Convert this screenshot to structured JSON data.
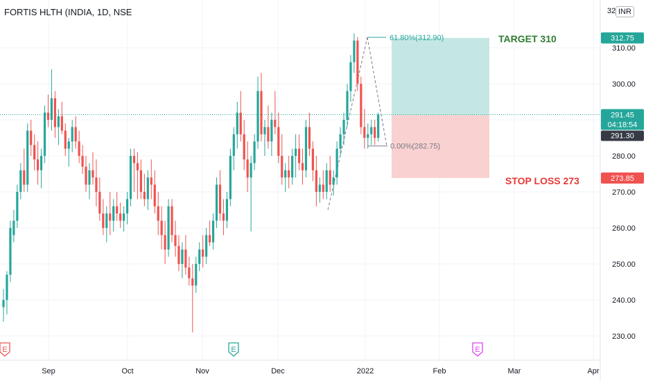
{
  "header": {
    "symbol_title": "FORTIS HLTH (INDIA, 1D, NSE",
    "axis_prefix": "32",
    "currency": "INR"
  },
  "colors": {
    "up": "#26a69a",
    "down": "#ef5350",
    "target_zone": "#b2dfdb",
    "stop_zone": "#f8c6c4",
    "target_text": "#2e7d32",
    "stop_text": "#e53935",
    "current_price_label": "#26a69a",
    "price_line": "#26a69a",
    "grid": "#f0f3fa",
    "axis_text": "#131722"
  },
  "annotations": {
    "target_text": "TARGET 310",
    "stop_text": "STOP LOSS 273",
    "fib_high_label": "61.80%(312.90)",
    "fib_low_label": "0.00%(282.75)"
  },
  "price_badges": {
    "target": "312.75",
    "current": "291.45",
    "countdown": "04:18:54",
    "entry": "291.30",
    "stop": "273.85"
  },
  "event_markers": [
    "E",
    "E",
    "E"
  ],
  "chart_data": {
    "type": "candlestick",
    "symbol": "FORTIS HLTH",
    "exchange": "NSE",
    "timeframe": "1D",
    "currency": "INR",
    "x_ticks": [
      "Sep",
      "Oct",
      "Nov",
      "Dec",
      "2022",
      "Feb",
      "Mar",
      "Apr"
    ],
    "y_ticks": [
      230,
      240,
      250,
      260,
      270,
      280,
      290,
      300,
      310
    ],
    "ylim": [
      223,
      322
    ],
    "candles": [
      [
        238,
        243,
        234,
        240
      ],
      [
        240,
        248,
        236,
        247
      ],
      [
        247,
        262,
        245,
        260
      ],
      [
        258,
        265,
        256,
        262
      ],
      [
        262,
        272,
        260,
        270
      ],
      [
        270,
        278,
        268,
        276
      ],
      [
        276,
        282,
        270,
        272
      ],
      [
        272,
        289,
        270,
        287
      ],
      [
        287,
        290,
        280,
        283
      ],
      [
        283,
        286,
        276,
        279
      ],
      [
        279,
        284,
        272,
        276
      ],
      [
        276,
        282,
        271,
        280
      ],
      [
        280,
        294,
        278,
        292
      ],
      [
        292,
        297,
        288,
        290
      ],
      [
        290,
        304,
        287,
        296
      ],
      [
        296,
        298,
        285,
        288
      ],
      [
        288,
        293,
        283,
        291
      ],
      [
        291,
        295,
        286,
        287
      ],
      [
        287,
        289,
        280,
        282
      ],
      [
        282,
        285,
        277,
        284
      ],
      [
        284,
        290,
        281,
        288
      ],
      [
        288,
        291,
        282,
        284
      ],
      [
        284,
        287,
        278,
        280
      ],
      [
        280,
        283,
        275,
        277
      ],
      [
        277,
        280,
        270,
        272
      ],
      [
        272,
        278,
        268,
        276
      ],
      [
        276,
        281,
        272,
        274
      ],
      [
        274,
        279,
        266,
        270
      ],
      [
        270,
        274,
        262,
        264
      ],
      [
        264,
        268,
        258,
        260
      ],
      [
        260,
        266,
        256,
        264
      ],
      [
        264,
        270,
        258,
        262
      ],
      [
        262,
        268,
        259,
        266
      ],
      [
        266,
        270,
        262,
        264
      ],
      [
        264,
        267,
        260,
        262
      ],
      [
        262,
        266,
        259,
        264
      ],
      [
        264,
        270,
        261,
        268
      ],
      [
        268,
        282,
        266,
        280
      ],
      [
        280,
        282,
        270,
        278
      ],
      [
        278,
        281,
        268,
        276
      ],
      [
        276,
        279,
        268,
        270
      ],
      [
        270,
        275,
        266,
        268
      ],
      [
        268,
        276,
        265,
        274
      ],
      [
        274,
        279,
        268,
        272
      ],
      [
        272,
        276,
        264,
        266
      ],
      [
        266,
        270,
        258,
        262
      ],
      [
        262,
        266,
        254,
        258
      ],
      [
        258,
        262,
        250,
        254
      ],
      [
        254,
        268,
        252,
        266
      ],
      [
        266,
        268,
        256,
        258
      ],
      [
        258,
        262,
        252,
        255
      ],
      [
        255,
        258,
        248,
        250
      ],
      [
        250,
        256,
        246,
        254
      ],
      [
        254,
        258,
        247,
        249
      ],
      [
        249,
        252,
        244,
        246
      ],
      [
        246,
        250,
        231,
        244
      ],
      [
        244,
        252,
        242,
        250
      ],
      [
        250,
        256,
        248,
        254
      ],
      [
        254,
        258,
        249,
        252
      ],
      [
        252,
        260,
        250,
        258
      ],
      [
        258,
        262,
        255,
        256
      ],
      [
        256,
        264,
        254,
        262
      ],
      [
        262,
        274,
        260,
        272
      ],
      [
        272,
        276,
        262,
        264
      ],
      [
        264,
        268,
        258,
        262
      ],
      [
        262,
        270,
        260,
        268
      ],
      [
        268,
        282,
        266,
        280
      ],
      [
        280,
        288,
        276,
        286
      ],
      [
        286,
        295,
        282,
        292
      ],
      [
        292,
        298,
        284,
        286
      ],
      [
        286,
        290,
        276,
        279
      ],
      [
        279,
        284,
        270,
        274
      ],
      [
        274,
        280,
        259,
        278
      ],
      [
        278,
        286,
        276,
        284
      ],
      [
        284,
        302,
        282,
        298
      ],
      [
        298,
        303,
        284,
        286
      ],
      [
        286,
        290,
        280,
        288
      ],
      [
        288,
        294,
        282,
        284
      ],
      [
        284,
        292,
        280,
        290
      ],
      [
        290,
        298,
        286,
        288
      ],
      [
        288,
        292,
        278,
        280
      ],
      [
        280,
        286,
        272,
        274
      ],
      [
        274,
        278,
        270,
        276
      ],
      [
        276,
        280,
        271,
        274
      ],
      [
        274,
        282,
        272,
        280
      ],
      [
        280,
        286,
        274,
        282
      ],
      [
        282,
        286,
        276,
        278
      ],
      [
        278,
        282,
        272,
        276
      ],
      [
        276,
        290,
        274,
        288
      ],
      [
        288,
        292,
        280,
        282
      ],
      [
        282,
        284,
        273,
        276
      ],
      [
        276,
        280,
        266,
        270
      ],
      [
        270,
        274,
        267,
        272
      ],
      [
        272,
        276,
        268,
        270
      ],
      [
        270,
        278,
        268,
        276
      ],
      [
        276,
        280,
        270,
        272
      ],
      [
        272,
        276,
        269,
        274
      ],
      [
        274,
        284,
        272,
        282
      ],
      [
        282,
        288,
        280,
        286
      ],
      [
        286,
        292,
        283,
        290
      ],
      [
        290,
        300,
        288,
        298
      ],
      [
        298,
        308,
        295,
        306
      ],
      [
        306,
        314,
        303,
        312
      ],
      [
        312,
        313,
        298,
        300
      ],
      [
        300,
        302,
        286,
        288
      ],
      [
        288,
        293,
        282,
        285
      ],
      [
        285,
        289,
        282,
        286
      ],
      [
        286,
        290,
        283,
        288
      ],
      [
        288,
        290,
        283,
        285
      ],
      [
        285,
        292,
        284,
        291.45
      ]
    ],
    "current_price": 291.45,
    "horizontal_price_line": 291.45,
    "long_position": {
      "entry": 291.3,
      "target": 312.75,
      "stop": 273.85
    },
    "fibonacci": {
      "high": {
        "level": "61.80%",
        "price": 312.9
      },
      "low": {
        "level": "0.00%",
        "price": 282.75
      }
    },
    "annotations": [
      "TARGET 310",
      "STOP LOSS 273"
    ]
  }
}
